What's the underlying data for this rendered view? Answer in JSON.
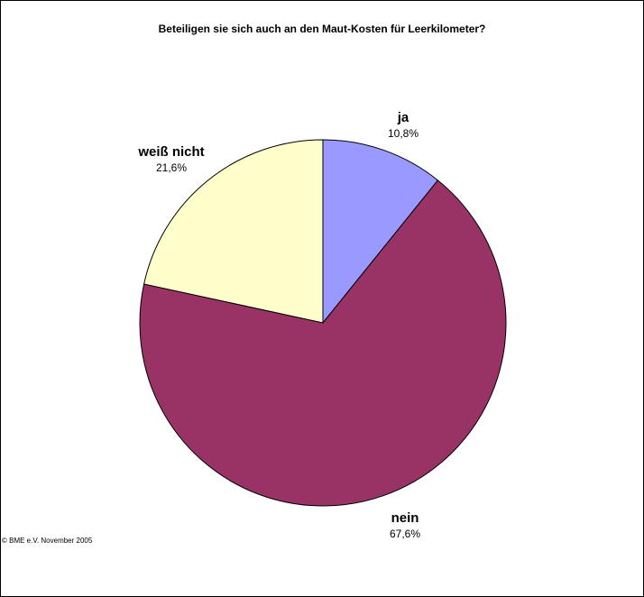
{
  "chart_data": {
    "type": "pie",
    "title": "Beteiligen sie sich auch an den Maut-Kosten für Leerkilometer?",
    "slices": [
      {
        "label": "ja",
        "value": 10.8,
        "value_label": "10,8%",
        "color": "#9999FF"
      },
      {
        "label": "nein",
        "value": 67.6,
        "value_label": "67,6%",
        "color": "#993366"
      },
      {
        "label": "weiß nicht",
        "value": 21.6,
        "value_label": "21,6%",
        "color": "#FFFFCC"
      }
    ],
    "start": "12 o'clock",
    "direction": "clockwise",
    "edge_color": "#000000"
  },
  "footer": {
    "source": "© BME e.V. November 2005"
  }
}
